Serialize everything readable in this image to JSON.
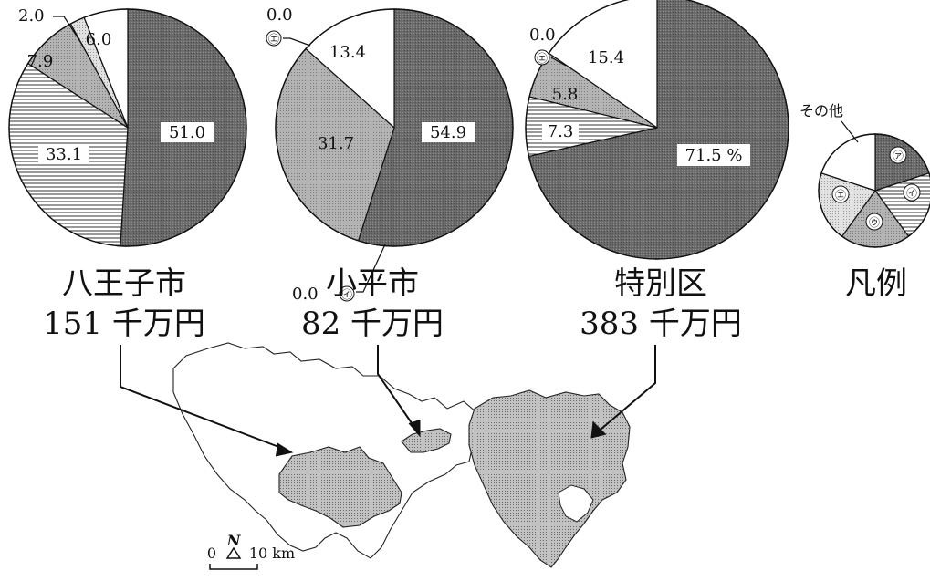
{
  "chart_data": {
    "type": "pie",
    "unit": "%",
    "charts": [
      {
        "name": "八王子市",
        "total_label": "151 千万円",
        "values": [
          51.0,
          33.1,
          7.9,
          2.0,
          6.0
        ],
        "labels": [
          "51.0",
          "33.1",
          "7.9",
          "2.0",
          "6.0"
        ]
      },
      {
        "name": "小平市",
        "total_label": "82 千万円",
        "values": [
          54.9,
          0.0,
          31.7,
          0.0,
          13.4
        ],
        "labels": [
          "54.9",
          "0.0",
          "31.7",
          "0.0",
          "13.4"
        ]
      },
      {
        "name": "特別区",
        "total_label": "383 千万円",
        "values": [
          71.5,
          7.3,
          5.8,
          0.0,
          15.4
        ],
        "labels": [
          "71.5 %",
          "7.3",
          "5.8",
          "0.0",
          "15.4"
        ]
      }
    ],
    "legend": {
      "title": "凡例",
      "other_label": "その他",
      "categories": [
        "㋐",
        "㋑",
        "㋒",
        "㋓",
        "その他"
      ]
    }
  },
  "map": {
    "north_label": "N",
    "scale_zero": "0",
    "scale_label": "10 km"
  },
  "colors": {
    "a_dark": "#707070",
    "i_lines": "#cfcfcf",
    "u_medium": "#a8a8a8",
    "e_light": "#d8d8d8",
    "other_white": "#ffffff",
    "map_fill": "#b5b5b5"
  }
}
